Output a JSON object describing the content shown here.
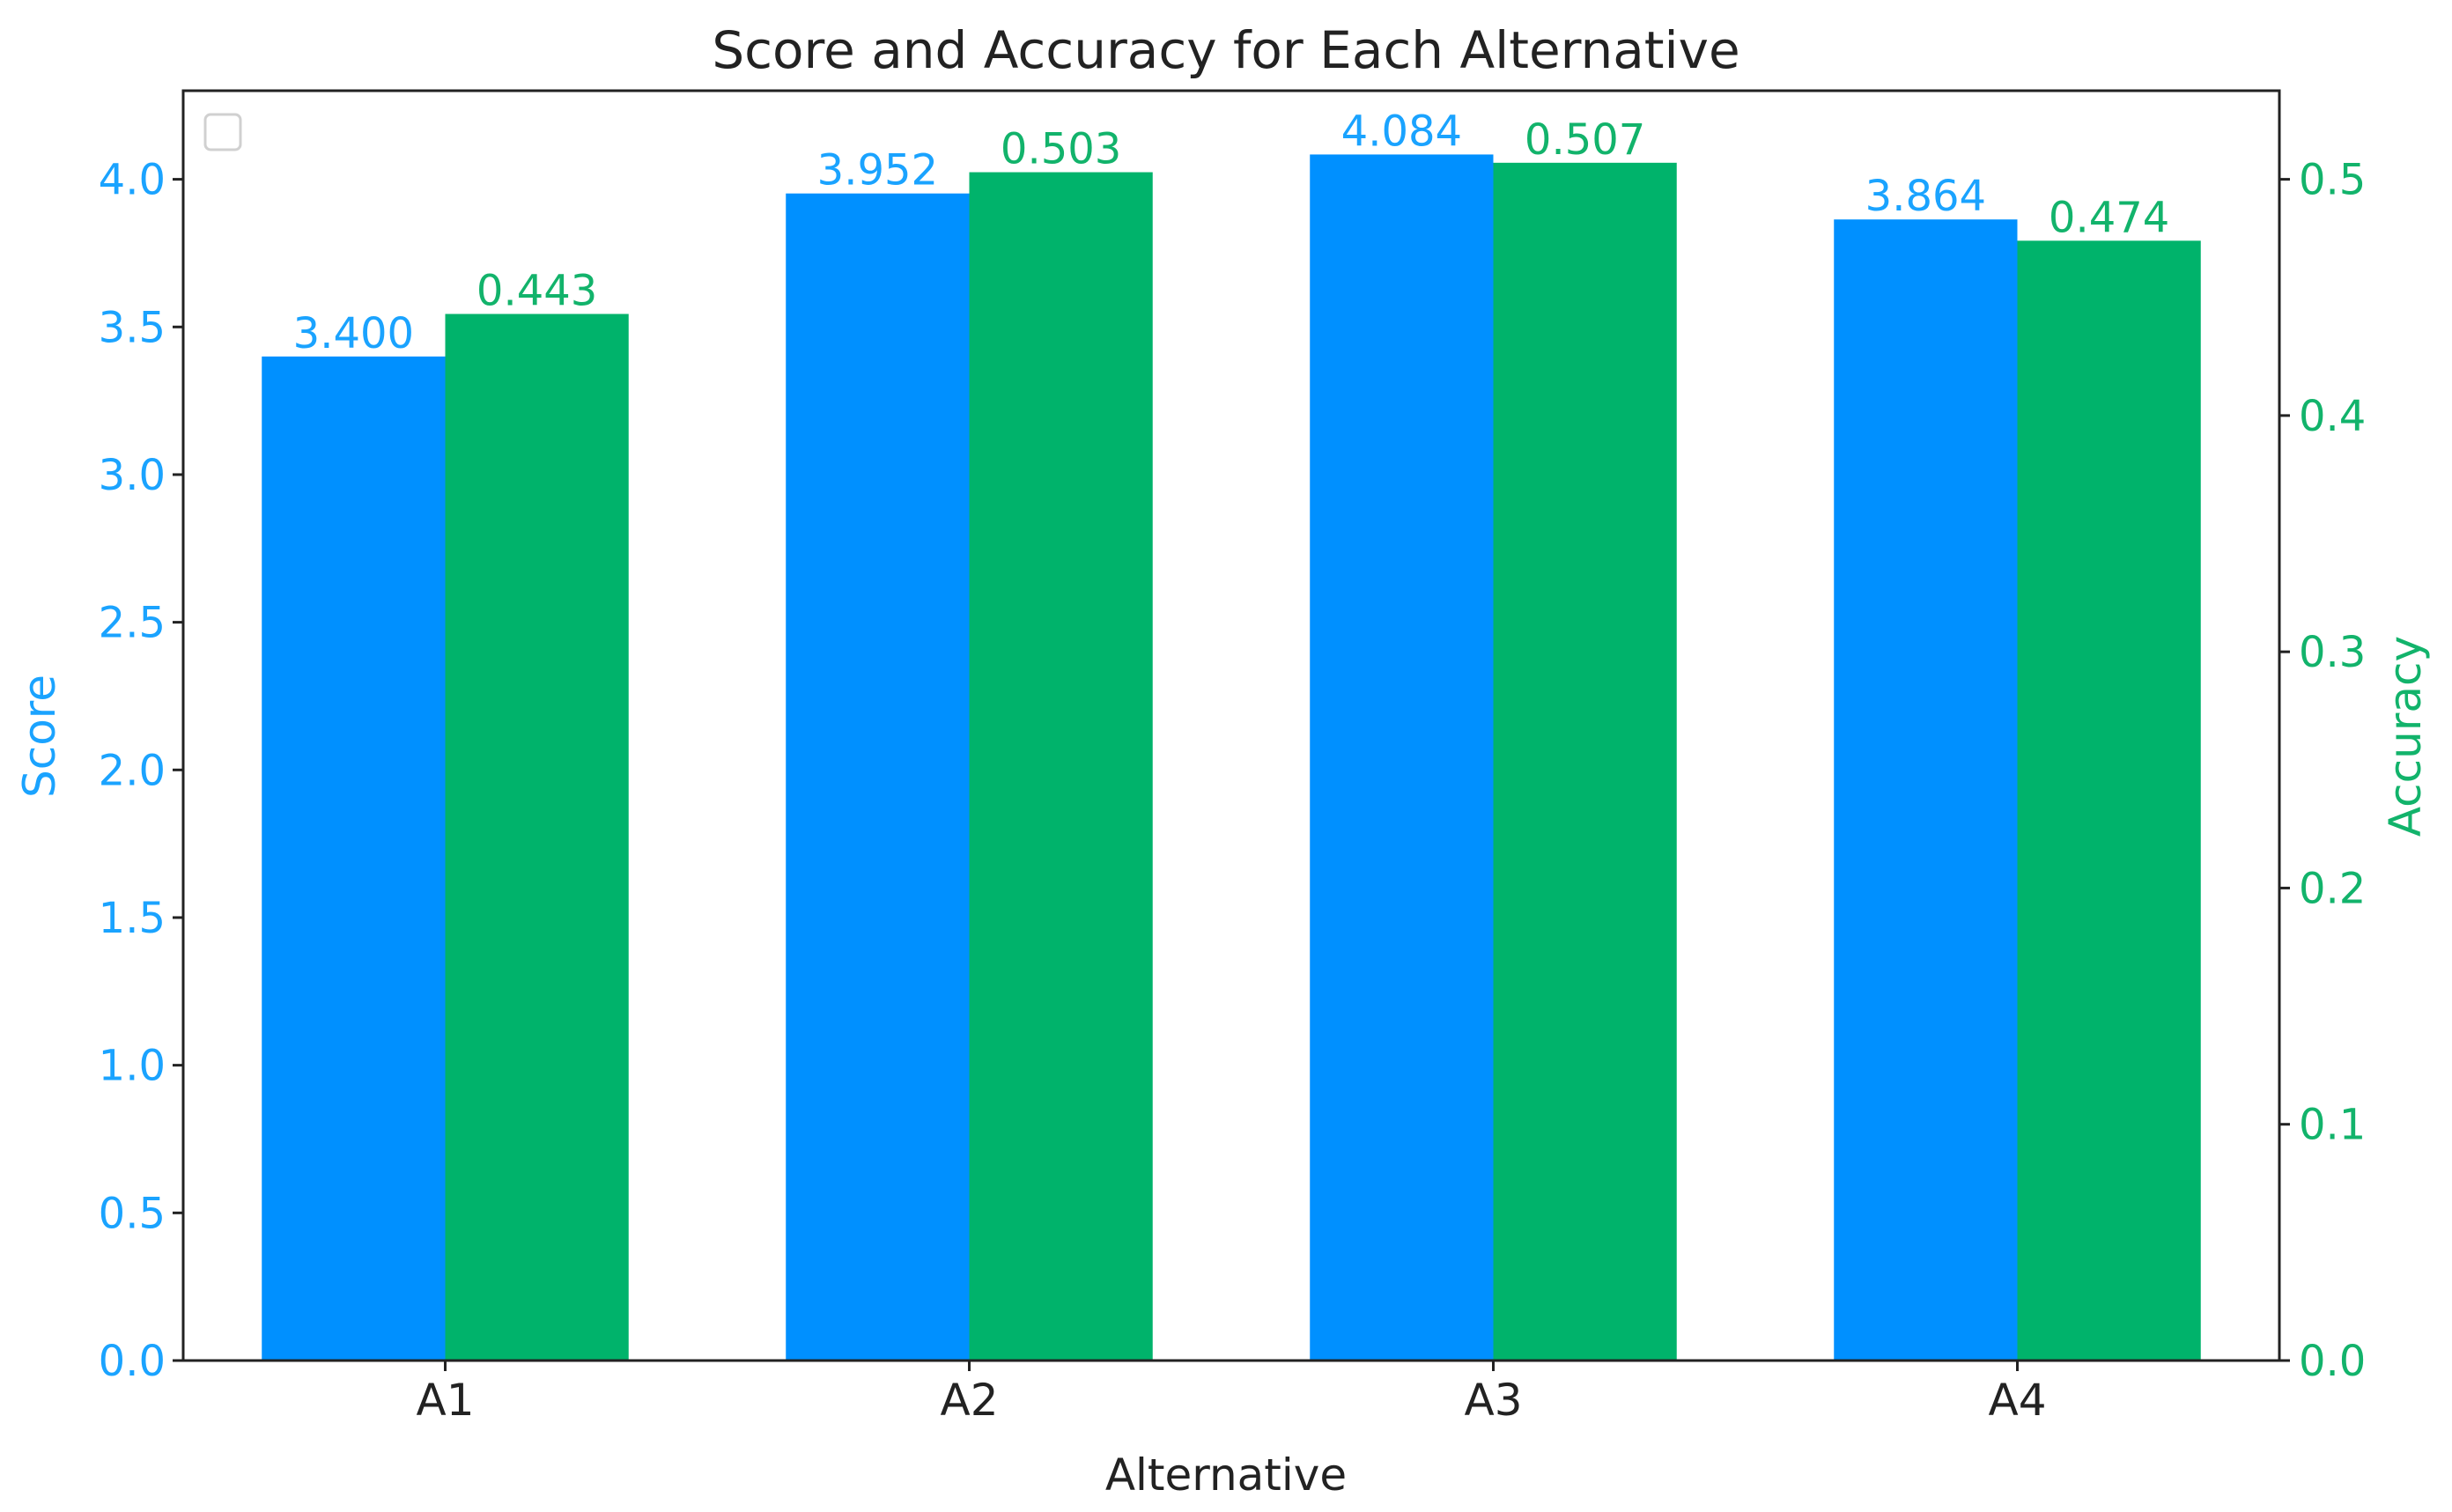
{
  "chart_data": {
    "type": "bar",
    "title": "Score and Accuracy for Each Alternative",
    "xlabel": "Alternative",
    "ylabel": "Score",
    "ylabel_right": "Accuracy",
    "categories": [
      "A1",
      "A2",
      "A3",
      "A4"
    ],
    "series": [
      {
        "name": "Score",
        "axis": "left",
        "color": "#0090ff",
        "label_color": "#1aa3ff",
        "values": [
          3.4,
          3.952,
          4.084,
          3.864
        ],
        "value_labels": [
          "3.400",
          "3.952",
          "4.084",
          "3.864"
        ]
      },
      {
        "name": "Accuracy",
        "axis": "right",
        "color": "#00b36b",
        "label_color": "#12b36b",
        "values": [
          0.443,
          0.503,
          0.507,
          0.474
        ],
        "value_labels": [
          "0.443",
          "0.503",
          "0.507",
          "0.474"
        ]
      }
    ],
    "ylim": [
      0,
      4.3
    ],
    "ylim_right": [
      0,
      0.5375
    ],
    "yticks": [
      "0.0",
      "0.5",
      "1.0",
      "1.5",
      "2.0",
      "2.5",
      "3.0",
      "3.5",
      "4.0"
    ],
    "yticks_right": [
      "0.0",
      "0.1",
      "0.2",
      "0.3",
      "0.4",
      "0.5"
    ],
    "grid": false,
    "legend": {
      "placement": "upper-left",
      "entries": []
    }
  }
}
